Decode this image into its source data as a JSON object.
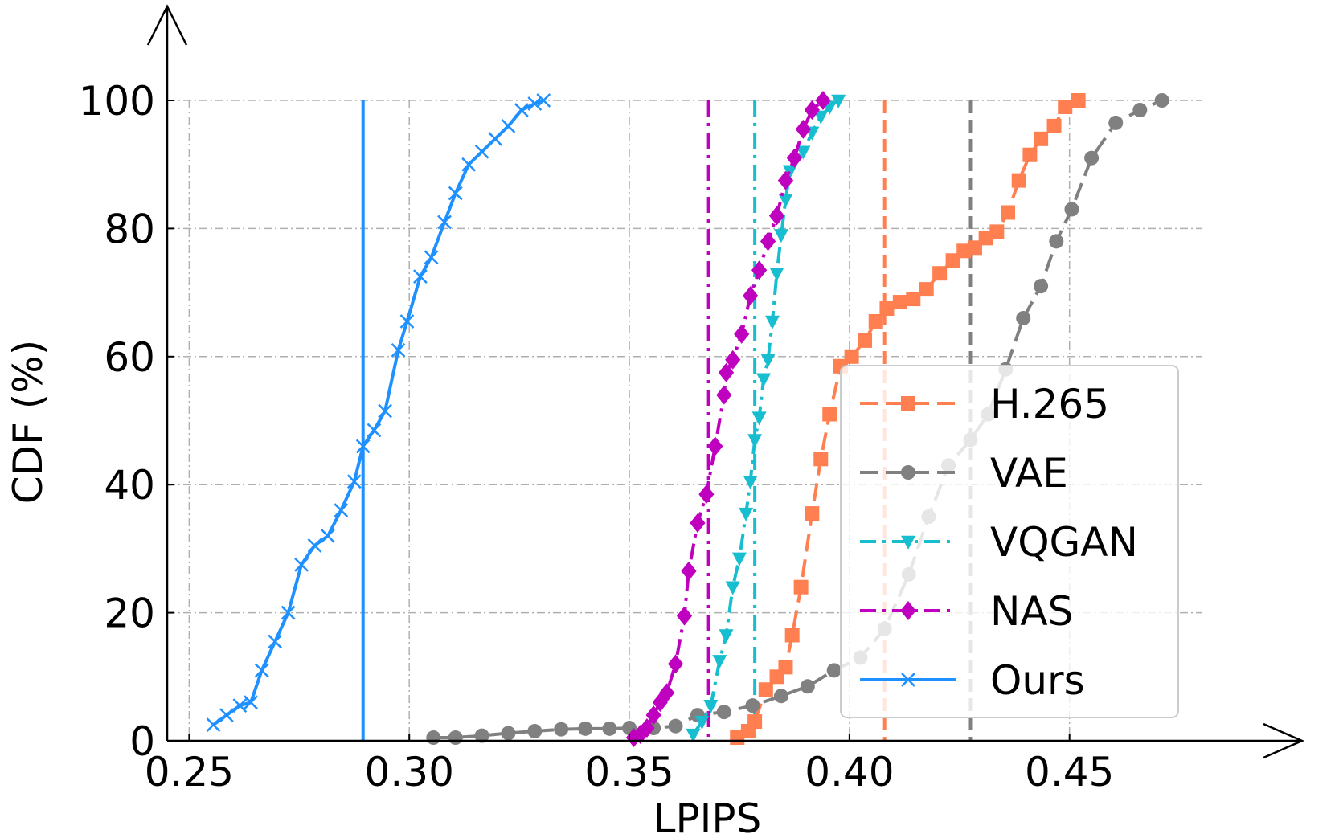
{
  "chart_data": {
    "type": "line",
    "xlabel": "LPIPS",
    "ylabel": "CDF (%)",
    "xlim": [
      0.245,
      0.48
    ],
    "ylim": [
      0,
      100
    ],
    "xticks": [
      0.25,
      0.3,
      0.35,
      0.4,
      0.45
    ],
    "xtick_labels": [
      "0.25",
      "0.30",
      "0.35",
      "0.40",
      "0.45"
    ],
    "yticks": [
      0,
      20,
      40,
      60,
      80,
      100
    ],
    "ytick_labels": [
      "0",
      "20",
      "40",
      "60",
      "80",
      "100"
    ],
    "grid": true,
    "legend_position": "lower-right",
    "series": [
      {
        "name": "H.265",
        "color": "#ff7f50",
        "marker": "square",
        "linestyle": "dashed",
        "mean": 0.408,
        "x": [
          0.3745,
          0.377,
          0.3785,
          0.381,
          0.3835,
          0.3855,
          0.387,
          0.389,
          0.3915,
          0.3935,
          0.3955,
          0.398,
          0.4005,
          0.4035,
          0.406,
          0.4085,
          0.4115,
          0.4145,
          0.4175,
          0.4205,
          0.4235,
          0.426,
          0.4285,
          0.431,
          0.4335,
          0.436,
          0.4385,
          0.441,
          0.4435,
          0.4465,
          0.449,
          0.452
        ],
        "y": [
          0.5,
          1.5,
          3,
          8,
          10,
          11.5,
          16.5,
          24,
          35.5,
          44,
          51,
          58.5,
          60,
          62.5,
          65.5,
          67.5,
          68.5,
          69,
          70.5,
          73,
          75,
          76.5,
          77,
          78.5,
          79.5,
          82.5,
          87.5,
          91.5,
          94,
          96,
          99,
          100
        ]
      },
      {
        "name": "VAE",
        "color": "#808080",
        "marker": "circle",
        "linestyle": "dashed",
        "mean": 0.4275,
        "x": [
          0.3055,
          0.3105,
          0.3165,
          0.3225,
          0.3285,
          0.3345,
          0.34,
          0.3455,
          0.35,
          0.3555,
          0.3605,
          0.3655,
          0.3715,
          0.378,
          0.3845,
          0.3905,
          0.3965,
          0.4025,
          0.408,
          0.4135,
          0.418,
          0.4225,
          0.4275,
          0.4315,
          0.4355,
          0.4395,
          0.4435,
          0.447,
          0.4505,
          0.455,
          0.4605,
          0.466,
          0.471
        ],
        "y": [
          0.5,
          0.5,
          0.8,
          1.2,
          1.5,
          1.8,
          1.9,
          1.9,
          2,
          2,
          2.3,
          4,
          4.5,
          5.5,
          7,
          8.5,
          11,
          13,
          17.5,
          26,
          35,
          43,
          47,
          51,
          58,
          66,
          71,
          78,
          83,
          91,
          96.5,
          98.5,
          100
        ]
      },
      {
        "name": "VQGAN",
        "color": "#17becf",
        "marker": "triangle-down",
        "linestyle": "dashdot",
        "mean": 0.3785,
        "x": [
          0.3645,
          0.3665,
          0.3685,
          0.3705,
          0.372,
          0.3735,
          0.375,
          0.3765,
          0.3775,
          0.3785,
          0.3795,
          0.3805,
          0.3815,
          0.3825,
          0.3835,
          0.3845,
          0.3855,
          0.3865,
          0.3875,
          0.3895,
          0.3915,
          0.3935,
          0.3955,
          0.3975
        ],
        "y": [
          1,
          3,
          5.5,
          12.5,
          16.5,
          24,
          28.5,
          35.5,
          40.5,
          47,
          50.5,
          56.5,
          59.5,
          65.5,
          73,
          79,
          84.5,
          89,
          90.5,
          92,
          95,
          97.5,
          99,
          100
        ]
      },
      {
        "name": "NAS",
        "color": "#bf00bf",
        "marker": "diamond",
        "linestyle": "dashdot",
        "mean": 0.368,
        "x": [
          0.351,
          0.3525,
          0.354,
          0.3555,
          0.357,
          0.3585,
          0.3605,
          0.3625,
          0.3635,
          0.3655,
          0.3675,
          0.3695,
          0.3715,
          0.372,
          0.3735,
          0.3755,
          0.3775,
          0.3795,
          0.3815,
          0.3835,
          0.3855,
          0.3875,
          0.3895,
          0.3915,
          0.394
        ],
        "y": [
          0.5,
          1,
          2,
          4,
          6,
          7.5,
          12,
          19.5,
          26.5,
          34,
          38.5,
          46,
          54,
          57.5,
          59.5,
          63.5,
          69.5,
          73.5,
          78,
          82,
          87.5,
          91,
          95.5,
          98.5,
          100
        ]
      },
      {
        "name": "Ours",
        "color": "#1e90ff",
        "marker": "x",
        "linestyle": "solid",
        "mean": 0.2895,
        "x": [
          0.2555,
          0.2585,
          0.2615,
          0.264,
          0.2665,
          0.2695,
          0.2725,
          0.2755,
          0.2785,
          0.2815,
          0.2845,
          0.2875,
          0.2895,
          0.292,
          0.2945,
          0.2975,
          0.2995,
          0.3025,
          0.305,
          0.308,
          0.3105,
          0.3135,
          0.3165,
          0.3195,
          0.3225,
          0.3255,
          0.3285,
          0.3305
        ],
        "y": [
          2.5,
          4,
          5.5,
          6,
          11,
          15.5,
          20,
          27.5,
          30.5,
          32,
          36,
          40.5,
          46,
          48.5,
          51.5,
          61,
          65.5,
          72.5,
          75.5,
          81,
          85.5,
          90,
          92,
          94,
          96,
          98.5,
          99.5,
          100
        ]
      }
    ]
  }
}
